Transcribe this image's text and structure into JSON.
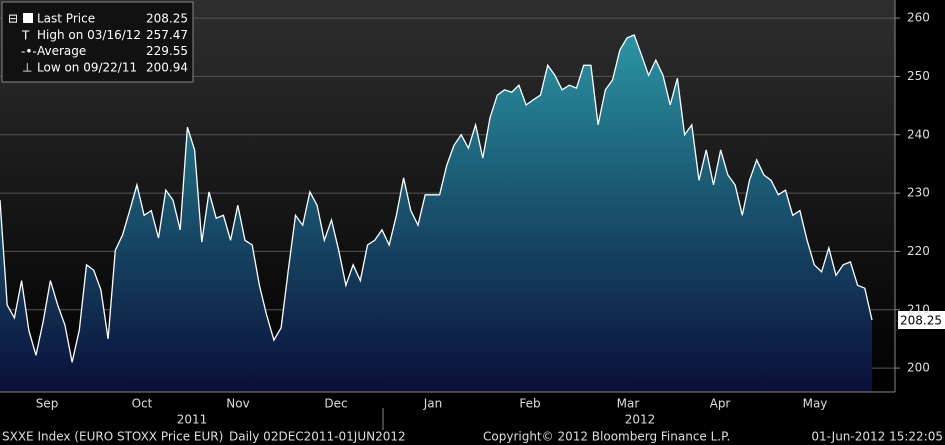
{
  "chart_data": {
    "type": "area-line",
    "values": [
      228.8,
      210.8,
      208.6,
      215,
      206.5,
      202.2,
      208,
      215,
      210.8,
      207.4,
      201,
      206.5,
      217.7,
      216.8,
      213.4,
      205,
      220.2,
      222.8,
      227,
      231.4,
      226.2,
      227,
      222.3,
      230.5,
      228.8,
      223.7,
      241.3,
      237.4,
      221.6,
      230.2,
      225.7,
      226.2,
      221.9,
      227.9,
      221.9,
      221.1,
      214.2,
      209.1,
      204.8,
      206.9,
      216.8,
      226.2,
      224.5,
      230.2,
      227.9,
      221.9,
      225.4,
      220.2,
      214.2,
      217.7,
      215,
      221.1,
      221.9,
      223.7,
      221.1,
      226.2,
      232.6,
      227,
      224.5,
      229.7,
      229.7,
      229.7,
      234.8,
      238.2,
      240,
      237.7,
      241.7,
      236,
      242.9,
      246.8,
      247.7,
      247.3,
      248.5,
      245.1,
      246,
      246.8,
      251.9,
      250.2,
      247.7,
      248.5,
      248,
      251.9,
      251.9,
      241.7,
      247.7,
      249.4,
      254.5,
      256.6,
      257.1,
      253.7,
      250.2,
      252.8,
      250.2,
      245.1,
      249.7,
      240,
      241.7,
      232.2,
      237.4,
      231.4,
      237.4,
      233.1,
      231.4,
      226.2,
      232.2,
      235.7,
      233.1,
      232.2,
      229.7,
      230.5,
      226.2,
      227,
      221.9,
      217.7,
      216.5,
      220.6,
      215.9,
      217.7,
      218.2,
      214.2,
      213.7,
      208.25
    ],
    "color": "#ffffff",
    "months": [
      "Sep",
      "Oct",
      "Nov",
      "Dec",
      "Jan",
      "Feb",
      "Mar",
      "Apr",
      "May"
    ],
    "years": [
      "2011",
      "2012"
    ],
    "ylim": [
      195.9,
      263.1
    ],
    "yticks": [
      200,
      210,
      220,
      230,
      240,
      250,
      260
    ],
    "grid": true,
    "legend": [
      {
        "label": "Last Price",
        "value": 208.25
      },
      {
        "label": "High on 03/16/12",
        "value": 257.47
      },
      {
        "label": "Average",
        "value": 229.55
      },
      {
        "label": "Low on 09/22/11",
        "value": 200.94
      }
    ],
    "footer": {
      "left": "SXXE Index (EURO STOXX Price EUR)",
      "range": "Daily 02DEC2011-01JUN2012",
      "copyright": "Copyright© 2012 Bloomberg Finance L.P.",
      "timestamp": "01-Jun-2012 15:22:05"
    }
  }
}
